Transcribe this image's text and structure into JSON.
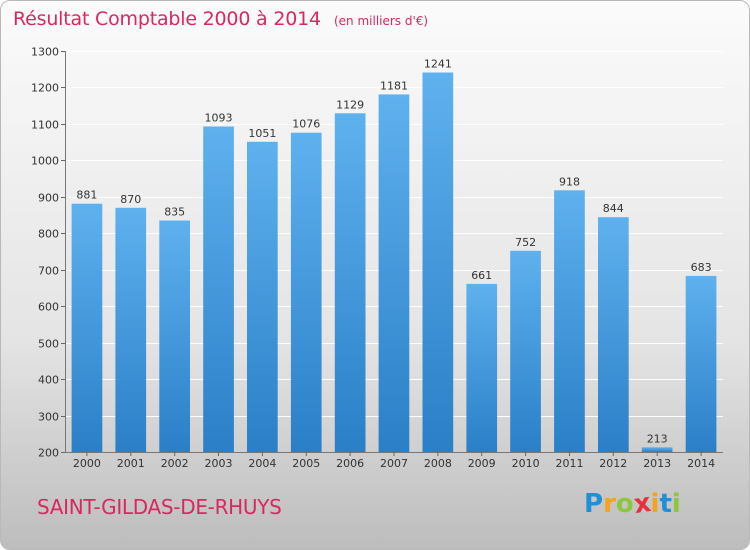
{
  "chart_data": {
    "type": "bar",
    "title": "Résultat Comptable 2000 à 2014",
    "subtitle": "(en milliers d'€)",
    "categories": [
      "2000",
      "2001",
      "2002",
      "2003",
      "2004",
      "2005",
      "2006",
      "2007",
      "2008",
      "2009",
      "2010",
      "2011",
      "2012",
      "2013",
      "2014"
    ],
    "values": [
      881,
      870,
      835,
      1093,
      1051,
      1076,
      1129,
      1181,
      1241,
      661,
      752,
      918,
      844,
      213,
      683
    ],
    "ylim": [
      200,
      1300
    ],
    "yticks": [
      200,
      300,
      400,
      500,
      600,
      700,
      800,
      900,
      1000,
      1100,
      1200,
      1300
    ],
    "xlabel": "",
    "ylabel": "",
    "grid": true,
    "bar_color": "#4a9fe0",
    "grid_color": "#ffffff"
  },
  "footer": {
    "city": "SAINT-GILDAS-DE-RHUYS",
    "logo_letters": [
      "P",
      "r",
      "o",
      "x",
      "i",
      "t",
      "i"
    ],
    "logo_colors": [
      "#1e90d8",
      "#f5a31a",
      "#8cc63e",
      "#e8303a",
      "#f5a31a",
      "#1e90d8",
      "#8cc63e"
    ]
  }
}
